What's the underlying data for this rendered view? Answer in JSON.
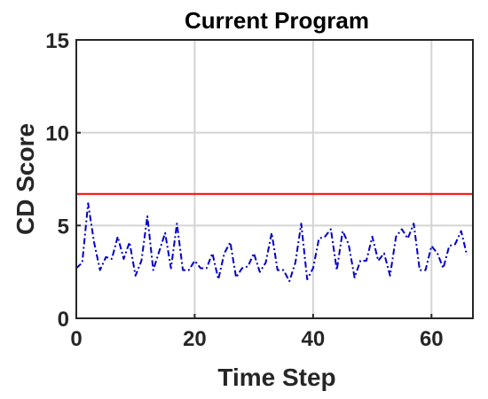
{
  "chart_data": {
    "type": "line",
    "title": "Current Program",
    "xlabel": "Time Step",
    "ylabel": "CD Score",
    "xlim": [
      0,
      67
    ],
    "ylim": [
      0,
      15
    ],
    "xticks": [
      0,
      20,
      40,
      60
    ],
    "yticks": [
      0,
      5,
      10,
      15
    ],
    "grid": true,
    "series": [
      {
        "color": "#0000cc",
        "style": "dash-dot",
        "x": [
          0,
          1,
          2,
          3,
          4,
          5,
          6,
          7,
          8,
          9,
          10,
          11,
          12,
          13,
          14,
          15,
          16,
          17,
          18,
          19,
          20,
          21,
          22,
          23,
          24,
          25,
          26,
          27,
          28,
          29,
          30,
          31,
          32,
          33,
          34,
          35,
          36,
          37,
          38,
          39,
          40,
          41,
          42,
          43,
          44,
          45,
          46,
          47,
          48,
          49,
          50,
          51,
          52,
          53,
          54,
          55,
          56,
          57,
          58,
          59,
          60,
          61,
          62,
          63,
          64,
          65,
          66
        ],
        "y": [
          2.7,
          3.0,
          6.2,
          4.1,
          2.6,
          3.3,
          3.2,
          4.4,
          3.2,
          4.1,
          2.3,
          3.1,
          5.5,
          2.6,
          3.6,
          4.6,
          2.7,
          5.1,
          2.6,
          2.6,
          3.1,
          2.7,
          2.7,
          3.5,
          2.1,
          3.5,
          4.1,
          2.2,
          2.7,
          2.8,
          3.5,
          2.5,
          3.0,
          4.6,
          2.6,
          2.6,
          2.0,
          3.0,
          5.1,
          2.1,
          2.7,
          4.3,
          4.4,
          4.8,
          2.6,
          4.7,
          4.0,
          2.2,
          3.1,
          3.1,
          4.4,
          3.1,
          3.5,
          2.3,
          4.4,
          4.8,
          4.3,
          5.1,
          2.6,
          2.6,
          3.9,
          3.5,
          2.7,
          3.9,
          4.0,
          4.7,
          3.4
        ]
      },
      {
        "color": "#ff0000",
        "style": "solid",
        "x": [
          0,
          67
        ],
        "y": [
          6.7,
          6.7
        ]
      }
    ]
  }
}
